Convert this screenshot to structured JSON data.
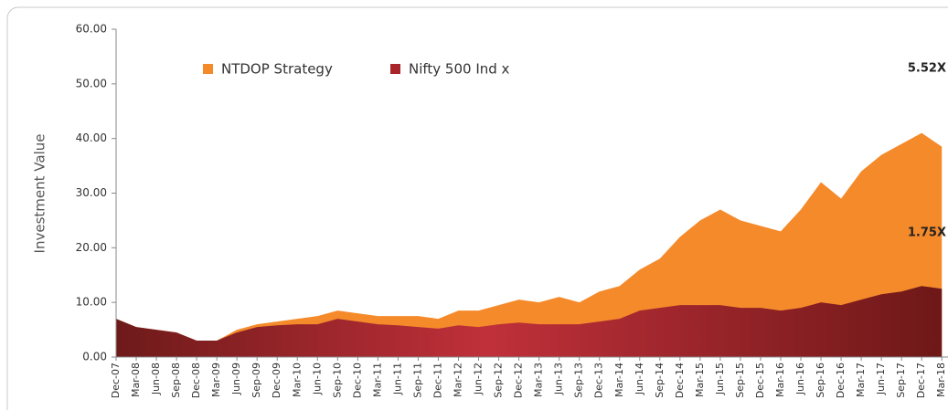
{
  "chart_data": {
    "type": "area",
    "y_label": "Investment Value",
    "categories": [
      "Dec-07",
      "Mar-08",
      "Jun-08",
      "Sep-08",
      "Dec-08",
      "Mar-09",
      "Jun-09",
      "Sep-09",
      "Dec-09",
      "Mar-10",
      "Jun-10",
      "Sep-10",
      "Dec-10",
      "Mar-11",
      "Jun-11",
      "Sep-11",
      "Dec-11",
      "Mar-12",
      "Jun-12",
      "Sep-12",
      "Dec-12",
      "Mar-13",
      "Jun-13",
      "Sep-13",
      "Dec-13",
      "Mar-14",
      "Jun-14",
      "Sep-14",
      "Dec-14",
      "Mar-15",
      "Jun-15",
      "Sep-15",
      "Dec-15",
      "Mar-16",
      "Jun-16",
      "Sep-16",
      "Dec-16",
      "Mar-17",
      "Jun-17",
      "Sep-17",
      "Dec-17",
      "Mar-18"
    ],
    "series": [
      {
        "name": "NTDOP Strategy",
        "color": "#f58a2a",
        "values": [
          7,
          5.5,
          5,
          4.5,
          3,
          3,
          5,
          6,
          6.5,
          7,
          7.5,
          8.5,
          8,
          7.5,
          7.5,
          7.5,
          7,
          8.5,
          8.5,
          9.5,
          10.5,
          10,
          11,
          10,
          12,
          13,
          16,
          18,
          22,
          25,
          27,
          25,
          24,
          23,
          27,
          32,
          29,
          34,
          37,
          39,
          41,
          38.5
        ]
      },
      {
        "name": "Nifty 500 Ind x",
        "color": "#a8262a",
        "values": [
          7,
          5.5,
          5,
          4.5,
          3,
          3,
          4.5,
          5.5,
          5.8,
          6,
          6,
          7,
          6.5,
          6,
          5.8,
          5.5,
          5.2,
          5.8,
          5.5,
          6,
          6.3,
          6,
          6,
          6,
          6.5,
          7,
          8.5,
          9,
          9.5,
          9.5,
          9.5,
          9,
          9,
          8.5,
          9,
          10,
          9.5,
          10.5,
          11.5,
          12,
          13,
          12.5
        ]
      }
    ],
    "annotations": [
      "5.52X",
      "1.75X"
    ],
    "ylim": [
      0,
      60
    ],
    "yticks": [
      {
        "value": 0,
        "label": "0.00"
      },
      {
        "value": 10,
        "label": "10.00"
      },
      {
        "value": 20,
        "label": "20.00"
      },
      {
        "value": 30,
        "label": "30.00"
      },
      {
        "value": 40,
        "label": "40.00"
      },
      {
        "value": 50,
        "label": "50.00"
      },
      {
        "value": 60,
        "label": "60.00"
      }
    ]
  }
}
